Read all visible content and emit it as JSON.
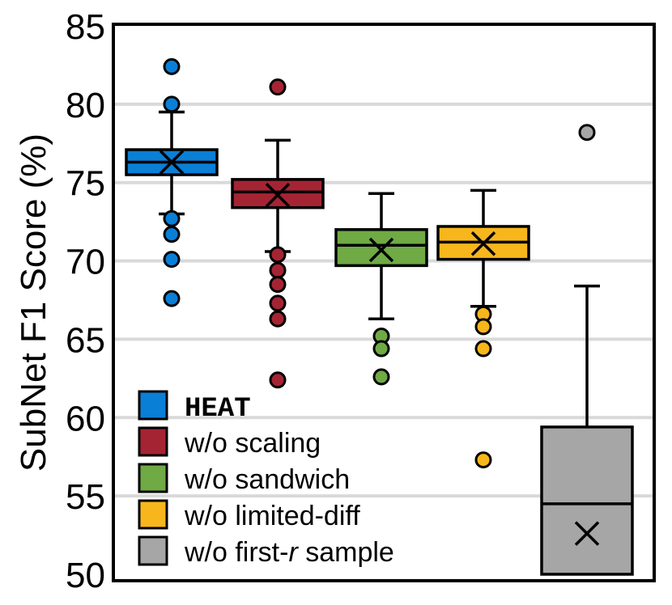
{
  "chart_data": {
    "type": "box",
    "ylabel": "SubNet F1 Score (%)",
    "ylim": [
      50,
      85
    ],
    "yticks": [
      "50",
      "55",
      "60",
      "65",
      "70",
      "75",
      "80",
      "85"
    ],
    "grid": "horizontal",
    "legend_placement": "bottom-left",
    "series": [
      {
        "name": "HEAT",
        "color": "#0a7fd6",
        "whisker_low": 73.0,
        "q1": 75.5,
        "median": 76.3,
        "q3": 77.1,
        "whisker_high": 79.5,
        "mean": 76.3,
        "outliers": [
          82.4,
          80.0,
          72.7,
          71.7,
          70.1,
          67.6
        ]
      },
      {
        "name": "w/o scaling",
        "color": "#a52434",
        "whisker_low": 70.6,
        "q1": 73.4,
        "median": 74.4,
        "q3": 75.2,
        "whisker_high": 77.7,
        "mean": 74.2,
        "outliers": [
          81.1,
          70.4,
          69.4,
          68.5,
          67.3,
          66.3,
          62.4
        ]
      },
      {
        "name": "w/o sandwich",
        "color": "#6faa44",
        "whisker_low": 66.3,
        "q1": 69.7,
        "median": 71.0,
        "q3": 72.0,
        "whisker_high": 74.3,
        "mean": 70.7,
        "outliers": [
          65.2,
          64.4,
          62.6
        ]
      },
      {
        "name": "w/o limited-diff",
        "color": "#f7b61b",
        "whisker_low": 67.1,
        "q1": 70.1,
        "median": 71.2,
        "q3": 72.2,
        "whisker_high": 74.5,
        "mean": 71.1,
        "outliers": [
          66.6,
          65.8,
          64.4,
          57.3
        ]
      },
      {
        "name": "w/o first-r sample",
        "color": "#a6a6a6",
        "whisker_low": 50.0,
        "q1": 50.0,
        "median": 54.5,
        "q3": 59.4,
        "whisker_high": 68.4,
        "mean": 52.6,
        "outliers": [
          78.2
        ]
      }
    ],
    "legend": [
      {
        "label": "HEAT",
        "color": "#0a7fd6"
      },
      {
        "label": "w/o scaling",
        "color": "#a52434"
      },
      {
        "label": "w/o sandwich",
        "color": "#6faa44"
      },
      {
        "label": "w/o limited-diff",
        "color": "#f7b61b"
      },
      {
        "label_prefix": "w/o first-",
        "label_italic": "r",
        "label_suffix": " sample",
        "color": "#a6a6a6"
      }
    ]
  }
}
